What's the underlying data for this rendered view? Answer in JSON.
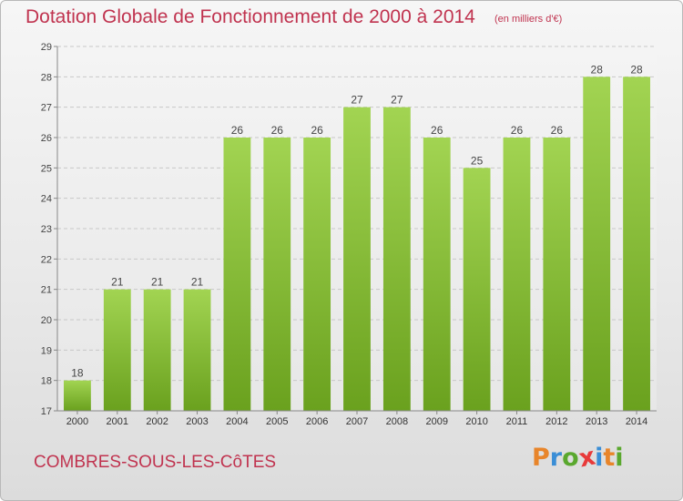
{
  "header": {
    "title": "Dotation Globale de Fonctionnement de 2000 à 2014",
    "subtitle": "(en milliers d'€)"
  },
  "footer": {
    "commune": "COMBRES-SOUS-LES-CôTES"
  },
  "logo": {
    "letters": [
      "P",
      "r",
      "o",
      "x",
      "i",
      "t",
      "i"
    ],
    "colors": [
      "#e8852a",
      "#3a8ed6",
      "#5aa82e",
      "#e83a3a",
      "#3a8ed6",
      "#e8852a",
      "#5aa82e"
    ]
  },
  "colors": {
    "bar_top": "#a2d452",
    "bar_bottom": "#6aa11e",
    "title": "#c0334f",
    "grid": "#c8c8c8"
  },
  "chart_data": {
    "type": "bar",
    "categories": [
      "2000",
      "2001",
      "2002",
      "2003",
      "2004",
      "2005",
      "2006",
      "2007",
      "2008",
      "2009",
      "2010",
      "2011",
      "2012",
      "2013",
      "2014"
    ],
    "values": [
      18,
      21,
      21,
      21,
      26,
      26,
      26,
      27,
      27,
      26,
      25,
      26,
      26,
      28,
      28
    ],
    "title": "Dotation Globale de Fonctionnement de 2000 à 2014",
    "subtitle": "(en milliers d'€)",
    "xlabel": "",
    "ylabel": "",
    "ylim": [
      17,
      29
    ],
    "yticks": [
      17,
      18,
      19,
      20,
      21,
      22,
      23,
      24,
      25,
      26,
      27,
      28,
      29
    ],
    "grid": "horizontal dashed",
    "data_labels": true
  }
}
